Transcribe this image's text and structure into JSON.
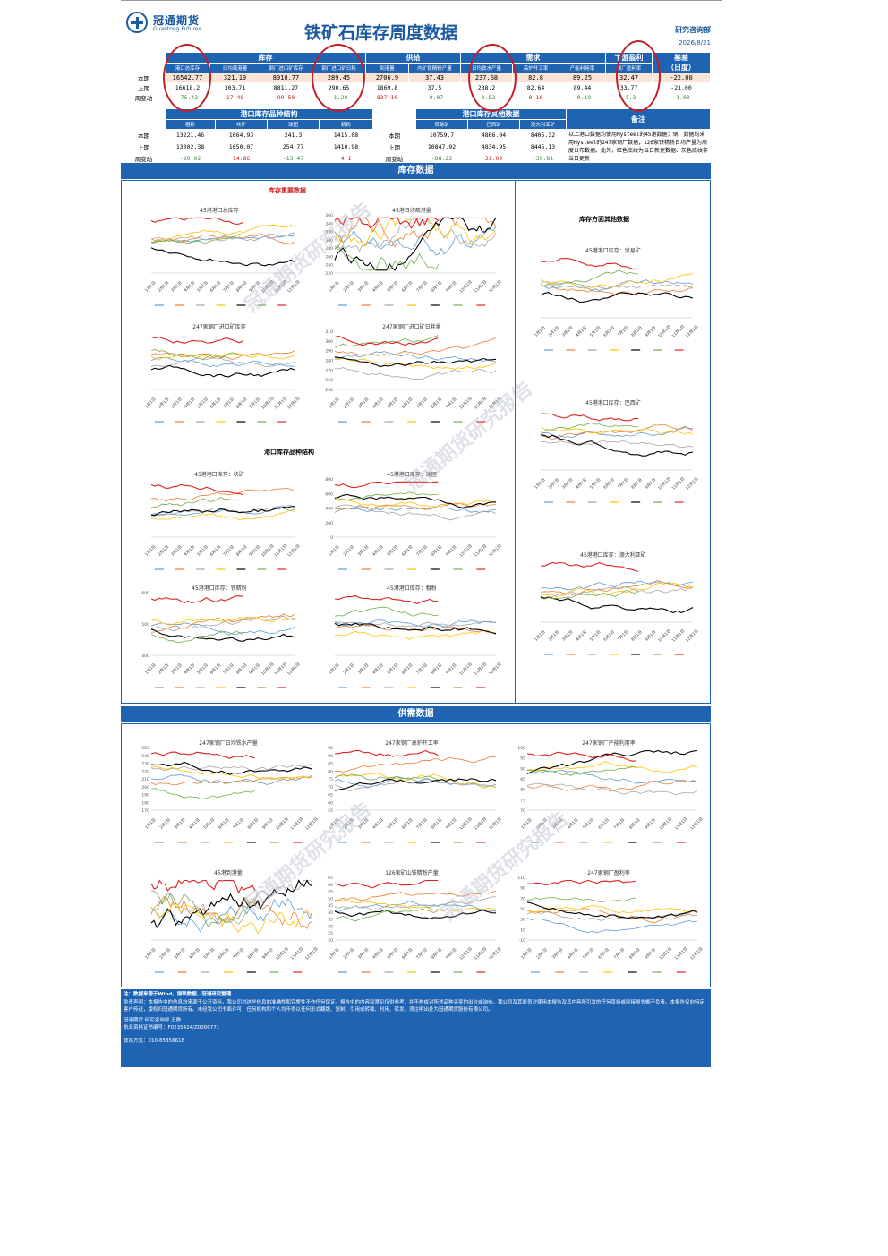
{
  "header": {
    "logo_cn": "冠通期货",
    "logo_en": "Guantong Futures",
    "title": "铁矿石库存周度数据",
    "dept": "研究咨询部",
    "date": "2026/8/21"
  },
  "table1": {
    "groups": [
      "库存",
      "供给",
      "需求",
      "下游盈利",
      "基差"
    ],
    "basis_sub": "（日度）",
    "cols": [
      "港口总库存",
      "日均疏港量",
      "钢厂进口矿库存",
      "钢厂进口矿日耗",
      "到港量",
      "内矿铁精粉产量",
      "日均铁水产量",
      "高炉开工率",
      "产能利用率",
      "钢厂盈利率"
    ],
    "rows": [
      {
        "label": "本期",
        "vals": [
          "16542.77",
          "321.19",
          "8910.77",
          "289.45",
          "2706.9",
          "37.43",
          "237.68",
          "82.8",
          "89.25",
          "32.47",
          "-22.00"
        ]
      },
      {
        "label": "上期",
        "vals": [
          "16618.2",
          "303.71",
          "8811.27",
          "290.65",
          "1869.8",
          "37.5",
          "238.2",
          "82.64",
          "89.44",
          "33.77",
          "-21.00"
        ]
      },
      {
        "label": "周变动",
        "vals": [
          "-75.43",
          "17.48",
          "99.50",
          "-1.20",
          "837.10",
          "-0.07",
          "-0.52",
          "0.16",
          "-0.19",
          "-1.3",
          "-1.00"
        ]
      }
    ]
  },
  "table2": {
    "group1": "港口库存品种结构",
    "cols1": [
      "粗粉",
      "块矿",
      "球团",
      "精粉"
    ],
    "group2": "港口库存其他数据",
    "cols2": [
      "贸易矿",
      "巴西矿",
      "澳大利亚矿"
    ],
    "note_head": "备注",
    "note": "以上港口数据均使用Mysteel的45港数据；钢厂数据均采用Mysteel的247家钢厂数据；126家铁精粉日均产量为周度公布数据。此外，红色底纹为当日新更数据、灰色底纹非当日更新",
    "rows": [
      {
        "label": "本期",
        "v1": [
          "13221.46",
          "1664.93",
          "241.3",
          "1415.08"
        ],
        "v2": [
          "10759.7",
          "4866.04",
          "8405.32"
        ]
      },
      {
        "label": "上期",
        "v1": [
          "13302.38",
          "1650.07",
          "254.77",
          "1410.98"
        ],
        "v2": [
          "10847.92",
          "4834.95",
          "8445.13"
        ]
      },
      {
        "label": "周变动",
        "v1": [
          "-80.92",
          "14.86",
          "-13.47",
          "4.1"
        ],
        "v2": [
          "-88.22",
          "31.09",
          "-39.81"
        ]
      }
    ]
  },
  "sections": {
    "inventory": "库存数据",
    "supply": "供需数据",
    "key": "库存重要数据",
    "other": "库存方面其他数据",
    "structure": "港口库存品种结构"
  },
  "months": [
    "1月1日",
    "2月1日",
    "3月1日",
    "4月1日",
    "5月1日",
    "6月1日",
    "7月1日",
    "8月1日",
    "9月1日",
    "10月1日",
    "11月1日",
    "12月1日"
  ],
  "series_colors": [
    "#5b9bd5",
    "#ed7d31",
    "#a5a5a5",
    "#ffc000",
    "#000000",
    "#70ad47",
    "#e02020",
    "#264478"
  ],
  "charts": [
    {
      "id": "c1",
      "title": "45港港口总库存",
      "yticks": []
    },
    {
      "id": "c2",
      "title": "45港日均疏港量",
      "yticks": [
        "360",
        "340",
        "320",
        "300",
        "280",
        "260",
        "240",
        "220"
      ]
    },
    {
      "id": "c3",
      "title": "247家钢厂进口矿库存",
      "yticks": []
    },
    {
      "id": "c4",
      "title": "247家钢厂进口矿日耗量",
      "yticks": [
        "310",
        "300",
        "290",
        "280",
        "270",
        "260",
        "250"
      ]
    },
    {
      "id": "c5",
      "title": "45港港口库存：块矿",
      "yticks": []
    },
    {
      "id": "c6",
      "title": "45港港口库存：球团",
      "yticks": [
        "800",
        "600",
        "400",
        "200",
        "0"
      ]
    },
    {
      "id": "c7",
      "title": "45港港口库存：铁精粉",
      "yticks": [
        "600",
        "500",
        "400"
      ]
    },
    {
      "id": "c8",
      "title": "45港港口库存：粗粉",
      "yticks": []
    },
    {
      "id": "c9",
      "title": "45港港口库存：贸易矿",
      "yticks": []
    },
    {
      "id": "c10",
      "title": "45港港口库存：巴西矿",
      "yticks": []
    },
    {
      "id": "c11",
      "title": "45港港口库存：澳大利亚矿",
      "yticks": []
    },
    {
      "id": "c12",
      "title": "247家钢厂日均铁水产量",
      "yticks": [
        "250",
        "240",
        "230",
        "220",
        "210",
        "200",
        "190",
        "180",
        "170"
      ]
    },
    {
      "id": "c13",
      "title": "247家钢厂高炉开工率",
      "yticks": [
        "95",
        "90",
        "85",
        "80",
        "75",
        "70",
        "65",
        "60",
        "55"
      ]
    },
    {
      "id": "c14",
      "title": "247家钢厂产能利用率",
      "yticks": [
        "100",
        "95",
        "90",
        "85",
        "80",
        "75",
        "70"
      ]
    },
    {
      "id": "c15",
      "title": "45港到港量",
      "yticks": []
    },
    {
      "id": "c16",
      "title": "126家矿山铁精粉产量",
      "yticks": [
        "65",
        "60",
        "55",
        "50",
        "45",
        "40",
        "35",
        "30",
        "25",
        "20"
      ]
    },
    {
      "id": "c17",
      "title": "247家钢厂盈利率",
      "yticks": [
        "110",
        "90",
        "70",
        "50",
        "30",
        "10",
        "-10"
      ]
    }
  ],
  "watermark": "冠通期货研究报告",
  "footer": {
    "source": "注：数据来源于Wind，钢联数据，冠通研究整理",
    "disclaimer": "免责声明：本报告中的信息均来源于公开资料，我公司对这些信息的准确性和完整性不作任何保证。报告中的内容和意见仅供参考，并不构成对所述品种买卖的出价或询价。我公司及其雇员对使用本报告及其内容所引发的任何直接或间接损失概不负责。本报告仅向特定客户传送，版权归冠通期货所有。未经我公司书面许可，任何机构和个人均不得以任何形式翻版、复制、引用或转载、刊用、转发，须注明出处为冠通期货股份有限公司。",
    "author": "冠通期货 研究咨询部 王静",
    "license": "执业资格证书编号：F0235424/Z0000771",
    "contact": "联系方式：010-85356618"
  }
}
